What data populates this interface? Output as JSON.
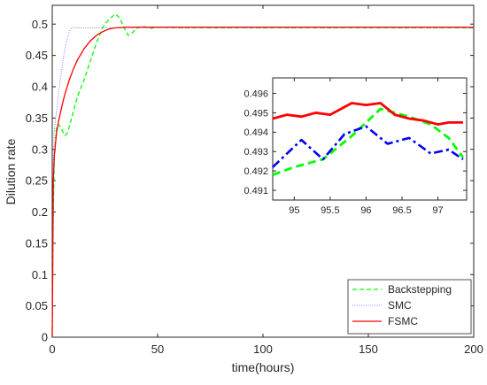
{
  "chart_data": [
    {
      "type": "line",
      "xlabel": "time(hours)",
      "ylabel": "Dilution rate",
      "xlim": [
        0,
        200
      ],
      "ylim": [
        0,
        0.53
      ],
      "xticks": [
        0,
        50,
        100,
        150,
        200
      ],
      "yticks": [
        0,
        0.05,
        0.1,
        0.15,
        0.2,
        0.25,
        0.3,
        0.35,
        0.4,
        0.45,
        0.5
      ],
      "xtick_labels": [
        "0",
        "50",
        "100",
        "150",
        "200"
      ],
      "ytick_labels": [
        "0",
        "0.05",
        "0.1",
        "0.15",
        "0.2",
        "0.25",
        "0.3",
        "0.35",
        "0.4",
        "0.45",
        "0.5"
      ],
      "grid": false,
      "legend_position": "bottom-right",
      "series": [
        {
          "name": "Backstepping",
          "color": "#00ff00",
          "style": "dashed",
          "x": [
            0,
            0.5,
            1,
            2,
            3,
            4,
            5,
            6,
            7,
            8,
            10,
            12,
            15,
            18,
            21,
            24,
            27,
            30,
            32,
            34,
            36,
            38,
            40,
            43,
            46,
            50,
            60,
            80,
            100,
            120,
            150,
            180,
            200
          ],
          "y": [
            0,
            0.2,
            0.29,
            0.335,
            0.34,
            0.335,
            0.328,
            0.322,
            0.325,
            0.335,
            0.36,
            0.385,
            0.41,
            0.44,
            0.47,
            0.495,
            0.508,
            0.516,
            0.51,
            0.495,
            0.482,
            0.486,
            0.493,
            0.497,
            0.493,
            0.495,
            0.494,
            0.494,
            0.494,
            0.494,
            0.494,
            0.494,
            0.494
          ]
        },
        {
          "name": "SMC",
          "color": "#8080ff",
          "style": "dotted",
          "x": [
            0,
            0.5,
            1,
            2,
            3,
            4,
            5,
            6,
            7,
            8,
            9,
            10,
            12,
            15,
            20,
            30,
            50,
            100,
            150,
            200
          ],
          "y": [
            0,
            0.28,
            0.33,
            0.36,
            0.39,
            0.415,
            0.44,
            0.46,
            0.475,
            0.487,
            0.494,
            0.495,
            0.494,
            0.494,
            0.494,
            0.494,
            0.494,
            0.494,
            0.494,
            0.494
          ]
        },
        {
          "name": "FSMC",
          "color": "#ff0000",
          "style": "solid",
          "x": [
            0,
            0.5,
            1,
            2,
            3,
            4,
            5,
            6,
            8,
            10,
            12,
            15,
            18,
            21,
            24,
            26,
            28,
            30,
            35,
            50,
            100,
            150,
            200
          ],
          "y": [
            0,
            0.25,
            0.29,
            0.325,
            0.345,
            0.36,
            0.375,
            0.388,
            0.41,
            0.428,
            0.443,
            0.46,
            0.473,
            0.482,
            0.488,
            0.491,
            0.493,
            0.494,
            0.495,
            0.495,
            0.495,
            0.495,
            0.495
          ]
        }
      ]
    },
    {
      "type": "line",
      "xlim": [
        94.7,
        97.4
      ],
      "ylim": [
        0.4905,
        0.4968
      ],
      "xticks": [
        95,
        95.5,
        96,
        96.5,
        97
      ],
      "yticks": [
        0.491,
        0.492,
        0.493,
        0.494,
        0.495,
        0.496
      ],
      "xtick_labels": [
        "95",
        "95.5",
        "96",
        "96.5",
        "97"
      ],
      "ytick_labels": [
        "0.491",
        "0.492",
        "0.493",
        "0.494",
        "0.495",
        "0.496"
      ],
      "grid": false,
      "series": [
        {
          "color": "#00ff00",
          "style": "dashed",
          "x": [
            94.7,
            95.0,
            95.4,
            95.8,
            96.2,
            96.6,
            96.9,
            97.15,
            97.35
          ],
          "y": [
            0.4918,
            0.4922,
            0.4926,
            0.4938,
            0.4952,
            0.4948,
            0.4944,
            0.4937,
            0.4927
          ]
        },
        {
          "color": "#0000ff",
          "style": "dashdot",
          "x": [
            94.7,
            94.9,
            95.1,
            95.4,
            95.7,
            96.0,
            96.3,
            96.6,
            96.9,
            97.15,
            97.35
          ],
          "y": [
            0.4922,
            0.4929,
            0.4936,
            0.4926,
            0.4939,
            0.4943,
            0.4934,
            0.4937,
            0.4929,
            0.4931,
            0.4926
          ]
        },
        {
          "color": "#ff0000",
          "style": "solid",
          "x": [
            94.7,
            94.9,
            95.1,
            95.3,
            95.5,
            95.7,
            95.8,
            96.0,
            96.2,
            96.4,
            96.6,
            96.8,
            97.0,
            97.15,
            97.35
          ],
          "y": [
            0.4947,
            0.4949,
            0.4948,
            0.495,
            0.4949,
            0.4953,
            0.4955,
            0.4954,
            0.4955,
            0.4949,
            0.4947,
            0.4946,
            0.4944,
            0.4945,
            0.4945
          ]
        }
      ]
    }
  ]
}
